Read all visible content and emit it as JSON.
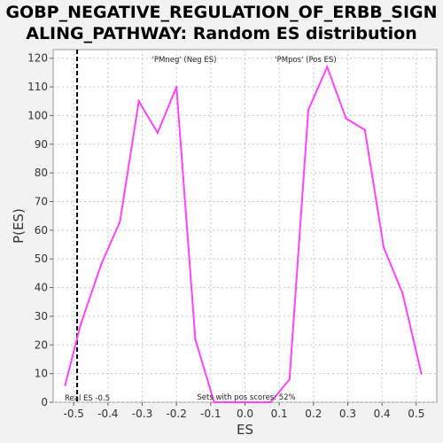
{
  "title_lines": [
    "GOBP_NEGATIVE_REGULATION_OF_ERBB_SIGN",
    "ALING_PATHWAY: Random ES distribution"
  ],
  "colors": {
    "series": "#ff44ff",
    "neg_label": "#2222cc",
    "pos_label": "#dd2222",
    "grid": "#c8c8c8",
    "real_es_line": "#000000"
  },
  "chart_data": {
    "type": "line",
    "xlabel": "ES",
    "ylabel": "P(ES)",
    "xlim": [
      -0.56,
      0.56
    ],
    "ylim": [
      0,
      123
    ],
    "xticks": [
      -0.5,
      -0.4,
      -0.3,
      -0.2,
      -0.1,
      0.0,
      0.1,
      0.2,
      0.3,
      0.4,
      0.5
    ],
    "xtick_labels": [
      "-0.5",
      "-0.4",
      "-0.3",
      "-0.2",
      "-0.1",
      "0.0",
      "0.1",
      "0.2",
      "0.3",
      "0.4",
      "0.5"
    ],
    "yticks": [
      0,
      10,
      20,
      30,
      40,
      50,
      60,
      70,
      80,
      90,
      100,
      110,
      120
    ],
    "ytick_labels": [
      "0",
      "10",
      "20",
      "30",
      "40",
      "50",
      "60",
      "70",
      "80",
      "90",
      "100",
      "110",
      "120"
    ],
    "grid": true,
    "x": [
      -0.525,
      -0.48,
      -0.42,
      -0.365,
      -0.31,
      -0.255,
      -0.2,
      -0.145,
      -0.09,
      -0.035,
      0.02,
      0.075,
      0.13,
      0.185,
      0.24,
      0.295,
      0.35,
      0.405,
      0.46,
      0.515
    ],
    "y": [
      6,
      27,
      48,
      63,
      105,
      94,
      110,
      22,
      0,
      0,
      0,
      0,
      8,
      102,
      117,
      99,
      95,
      54,
      38,
      10
    ],
    "real_es": -0.49,
    "annotations": {
      "neg": "'PMneg' (Neg ES)",
      "pos": "'PMpos' (Pos ES)",
      "real_es": "Real ES -0.5",
      "pos_scores": "Sets with pos scores: 52%"
    }
  }
}
